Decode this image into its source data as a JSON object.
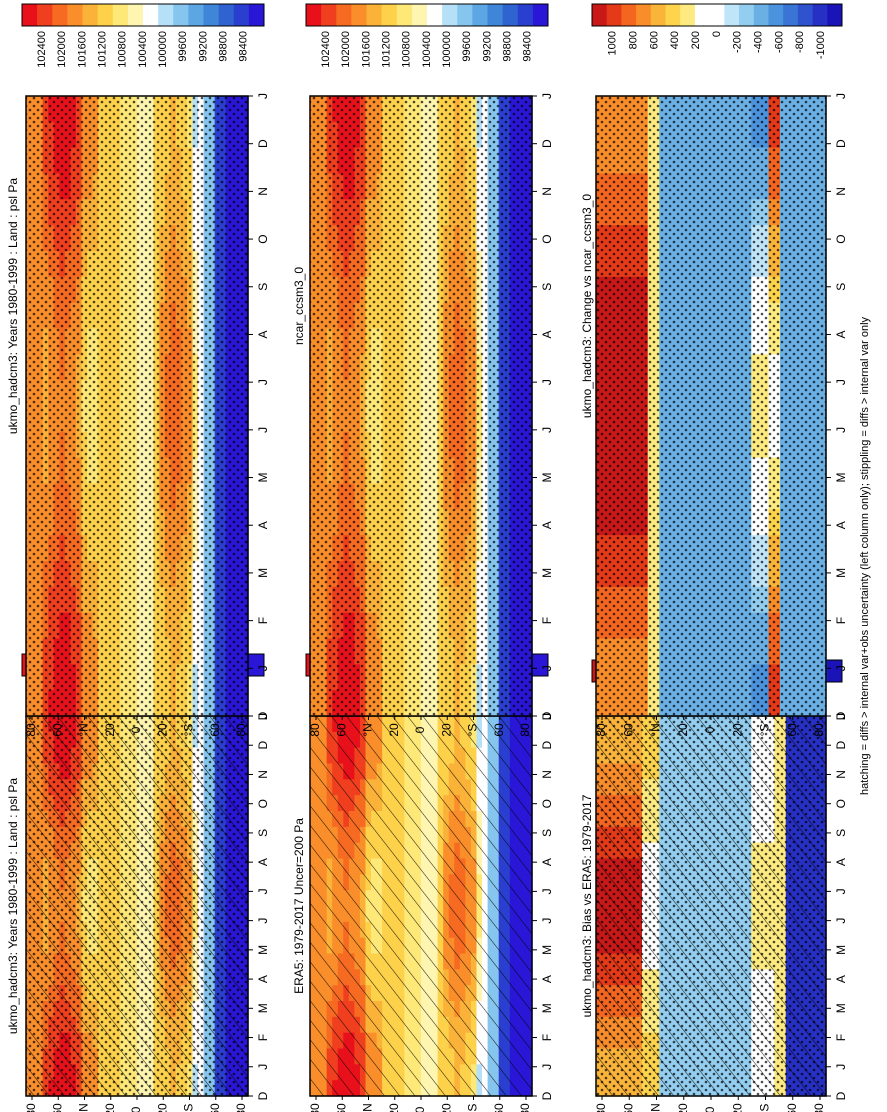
{
  "footnote": "hatching = diffs > internal var+obs uncertainty (left column only); stippling = diffs > internal var only",
  "colors": {
    "abs": [
      "#e8101b",
      "#f03f1f",
      "#f66a22",
      "#f98e2a",
      "#fbb238",
      "#fdd14a",
      "#fde878",
      "#fef6b0",
      "#ffffff",
      "#b6e0f7",
      "#86c6ee",
      "#5ba6e3",
      "#3f86d9",
      "#2f63cf",
      "#2a3ecf",
      "#2a16d6"
    ],
    "diff": [
      "#c81818",
      "#e43a18",
      "#f4661f",
      "#f98d2a",
      "#fbb43a",
      "#fdd44c",
      "#fdeb82",
      "#ffffff",
      "#ffffff",
      "#c0e4f8",
      "#93cdef",
      "#6ab0e5",
      "#4b93dd",
      "#3a74d5",
      "#2f52cf",
      "#2630c4",
      "#1a14b8"
    ]
  },
  "chart_data": [
    {
      "id": "model_abs",
      "type": "heatmap",
      "title": "ukmo_hadcm3: Years 1980-1999 : Land : psl Pa",
      "x_ticks": [
        "D",
        "J",
        "F",
        "M",
        "A",
        "M",
        "J",
        "J",
        "A",
        "S",
        "O",
        "N",
        "D",
        "J"
      ],
      "y_ticks": [
        "80",
        "60",
        "°N",
        "20",
        "0",
        "20",
        "°S",
        "60",
        "80"
      ],
      "colorbar_labels": [
        "102400",
        "102000",
        "101600",
        "101200",
        "100800",
        "100400",
        "100000",
        "99600",
        "99200",
        "98800",
        "98400"
      ],
      "scale": "abs",
      "hatching": true,
      "stippling": true
    },
    {
      "id": "model_abs_2",
      "type": "heatmap",
      "title": "ukmo_hadcm3: Years 1980-1999 : Land : psl Pa",
      "x_ticks": [
        "D",
        "J",
        "F",
        "M",
        "A",
        "M",
        "J",
        "J",
        "A",
        "S",
        "O",
        "N",
        "D",
        "J"
      ],
      "y_ticks": [
        "80",
        "60",
        "°N",
        "20",
        "0",
        "20",
        "°S",
        "60",
        "80"
      ],
      "colorbar_labels": [
        "102400",
        "102000",
        "101600",
        "101200",
        "100800",
        "100400",
        "100000",
        "99600",
        "99200",
        "98800",
        "98400"
      ],
      "scale": "abs",
      "hatching": false,
      "stippling": true
    },
    {
      "id": "obs_abs",
      "type": "heatmap",
      "title": "ERA5: 1979-2017 Uncer=200 Pa",
      "x_ticks": [
        "D",
        "J",
        "F",
        "M",
        "A",
        "M",
        "J",
        "J",
        "A",
        "S",
        "O",
        "N",
        "D",
        "J"
      ],
      "y_ticks": [
        "80",
        "60",
        "°N",
        "20",
        "0",
        "20",
        "°S",
        "60",
        "80"
      ],
      "colorbar_labels": [
        "102400",
        "102000",
        "101600",
        "101200",
        "100800",
        "100400",
        "100000",
        "99600",
        "99200",
        "98800",
        "98400"
      ],
      "scale": "abs",
      "hatching": true,
      "stippling": false
    },
    {
      "id": "ref_abs",
      "type": "heatmap",
      "title": "ncar_ccsm3_0",
      "x_ticks": [
        "D",
        "J",
        "F",
        "M",
        "A",
        "M",
        "J",
        "J",
        "A",
        "S",
        "O",
        "N",
        "D",
        "J"
      ],
      "y_ticks": [
        "80",
        "60",
        "°N",
        "20",
        "0",
        "20",
        "°S",
        "60",
        "80"
      ],
      "colorbar_labels": [
        "102400",
        "102000",
        "101600",
        "101200",
        "100800",
        "100400",
        "100000",
        "99600",
        "99200",
        "98800",
        "98400"
      ],
      "scale": "abs",
      "hatching": false,
      "stippling": true
    },
    {
      "id": "bias",
      "type": "heatmap",
      "title": "ukmo_hadcm3: Bias vs ERA5: 1979-2017",
      "x_ticks": [
        "D",
        "J",
        "F",
        "M",
        "A",
        "M",
        "J",
        "J",
        "A",
        "S",
        "O",
        "N",
        "D",
        "J"
      ],
      "y_ticks": [
        "80",
        "60",
        "°N",
        "20",
        "0",
        "20",
        "°S",
        "60",
        "80"
      ],
      "colorbar_labels": [
        "1000",
        "800",
        "600",
        "400",
        "200",
        "0",
        "-200",
        "-400",
        "-600",
        "-800",
        "-1000"
      ],
      "scale": "diff",
      "hatching": true,
      "stippling": true
    },
    {
      "id": "change",
      "type": "heatmap",
      "title": "ukmo_hadcm3: Change vs ncar_ccsm3_0",
      "x_ticks": [
        "D",
        "J",
        "F",
        "M",
        "A",
        "M",
        "J",
        "J",
        "A",
        "S",
        "O",
        "N",
        "D",
        "J"
      ],
      "y_ticks": [
        "80",
        "60",
        "°N",
        "20",
        "0",
        "20",
        "°S",
        "60",
        "80"
      ],
      "colorbar_labels": [
        "1000",
        "800",
        "600",
        "400",
        "200",
        "0",
        "-200",
        "-400",
        "-600",
        "-800",
        "-1000"
      ],
      "scale": "diff",
      "hatching": false,
      "stippling": true
    }
  ]
}
